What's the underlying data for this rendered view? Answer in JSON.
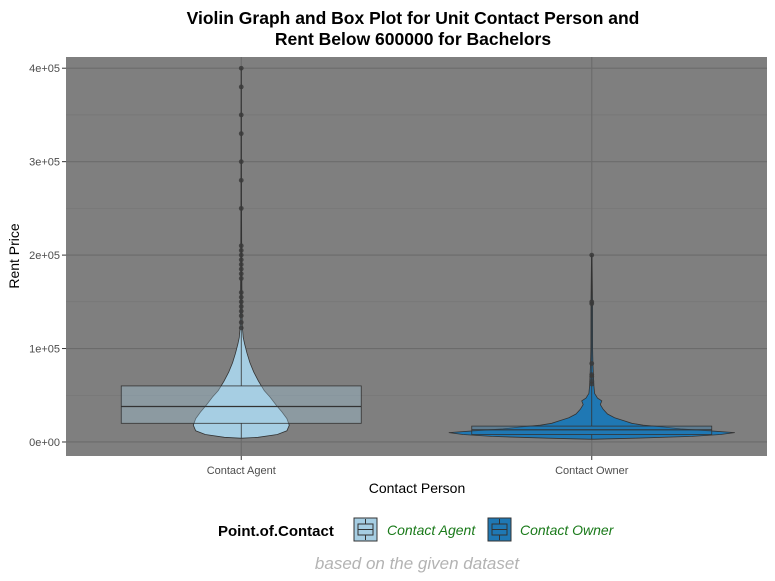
{
  "chart_data": {
    "type": "violin",
    "title_line1": "Violin Graph and Box Plot for Unit Contact Person and",
    "title_line2": "Rent Below 600000 for Bachelors",
    "xlabel": "Contact Person",
    "ylabel": "Rent Price",
    "caption": "based on the given dataset",
    "ylim": [
      -15000,
      405000
    ],
    "y_ticks": [
      {
        "value": 0,
        "label": "0e+00"
      },
      {
        "value": 100000,
        "label": "1e+05"
      },
      {
        "value": 200000,
        "label": "2e+05"
      },
      {
        "value": 300000,
        "label": "3e+05"
      },
      {
        "value": 400000,
        "label": "4e+05"
      }
    ],
    "categories": [
      "Contact Agent",
      "Contact Owner"
    ],
    "legend": {
      "title": "Point.of.Contact",
      "position": "bottom",
      "items": [
        {
          "label": "Contact Agent",
          "color": "#a6cee3"
        },
        {
          "label": "Contact Owner",
          "color": "#1f78b4"
        }
      ]
    },
    "grid": true,
    "panel_color": "#7f7f7f",
    "series": [
      {
        "category": "Contact Agent",
        "color": "#a6cee3",
        "box": {
          "q1": 20000,
          "median": 38000,
          "q3": 60000,
          "whisker_low": 4000,
          "whisker_high": 400000
        },
        "violin_profile": [
          [
            4000,
            0.02
          ],
          [
            5000,
            0.35
          ],
          [
            8000,
            0.75
          ],
          [
            12000,
            0.95
          ],
          [
            18000,
            1.0
          ],
          [
            25000,
            0.95
          ],
          [
            32000,
            0.85
          ],
          [
            40000,
            0.72
          ],
          [
            48000,
            0.6
          ],
          [
            55000,
            0.48
          ],
          [
            65000,
            0.36
          ],
          [
            75000,
            0.26
          ],
          [
            85000,
            0.18
          ],
          [
            95000,
            0.12
          ],
          [
            105000,
            0.07
          ],
          [
            112000,
            0.04
          ],
          [
            125000,
            0.02
          ],
          [
            150000,
            0.015
          ],
          [
            180000,
            0.012
          ],
          [
            210000,
            0.01
          ],
          [
            260000,
            0.006
          ],
          [
            330000,
            0.004
          ],
          [
            400000,
            0.002
          ]
        ],
        "outliers": [
          122000,
          128000,
          135000,
          140000,
          145000,
          150000,
          155000,
          160000,
          175000,
          180000,
          185000,
          190000,
          195000,
          200000,
          205000,
          210000,
          250000,
          280000,
          300000,
          330000,
          350000,
          380000,
          400000
        ]
      },
      {
        "category": "Contact Owner",
        "color": "#1f78b4",
        "box": {
          "q1": 8000,
          "median": 13000,
          "q3": 17000,
          "whisker_low": 3000,
          "whisker_high": 200000
        },
        "violin_profile": [
          [
            3000,
            0.02
          ],
          [
            4000,
            0.3
          ],
          [
            6000,
            0.7
          ],
          [
            8000,
            0.9
          ],
          [
            10000,
            1.0
          ],
          [
            12000,
            0.82
          ],
          [
            14000,
            0.62
          ],
          [
            16000,
            0.5
          ],
          [
            18000,
            0.36
          ],
          [
            20000,
            0.28
          ],
          [
            23000,
            0.22
          ],
          [
            26000,
            0.16
          ],
          [
            30000,
            0.11
          ],
          [
            35000,
            0.08
          ],
          [
            40000,
            0.06
          ],
          [
            44000,
            0.07
          ],
          [
            47000,
            0.04
          ],
          [
            52000,
            0.02
          ],
          [
            60000,
            0.015
          ],
          [
            70000,
            0.012
          ],
          [
            85000,
            0.008
          ],
          [
            100000,
            0.006
          ],
          [
            150000,
            0.005
          ],
          [
            200000,
            0.002
          ]
        ],
        "outliers": [
          62000,
          65000,
          70000,
          72000,
          84000,
          148000,
          150000,
          200000
        ]
      }
    ]
  }
}
